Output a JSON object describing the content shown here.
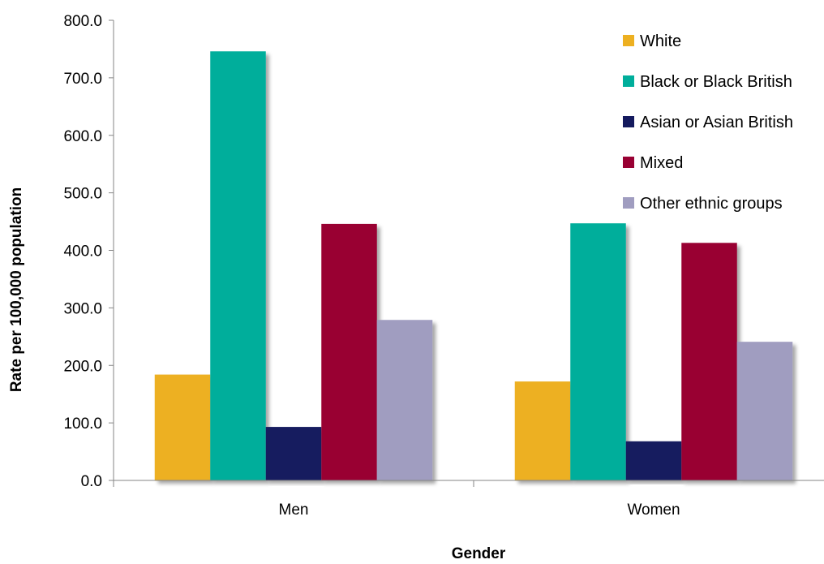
{
  "chart_data": {
    "type": "bar",
    "title": "",
    "xlabel": "Gender",
    "ylabel": "Rate per 100,000 population",
    "categories": [
      "Men",
      "Women"
    ],
    "ylim": [
      0,
      800
    ],
    "yticks": [
      "0.0",
      "100.0",
      "200.0",
      "300.0",
      "400.0",
      "500.0",
      "600.0",
      "700.0",
      "800.0"
    ],
    "grid": false,
    "legend_position": "top-right",
    "series": [
      {
        "name": "White",
        "color": "#EDB021",
        "values": [
          184,
          172
        ]
      },
      {
        "name": "Black or Black British",
        "color": "#00AE9B",
        "values": [
          746,
          447
        ]
      },
      {
        "name": "Asian or Asian British",
        "color": "#141A5E",
        "values": [
          93,
          68
        ]
      },
      {
        "name": "Mixed",
        "color": "#990033",
        "values": [
          446,
          413
        ]
      },
      {
        "name": "Other ethnic groups",
        "color": "#A09DC0",
        "values": [
          279,
          241
        ]
      }
    ]
  }
}
